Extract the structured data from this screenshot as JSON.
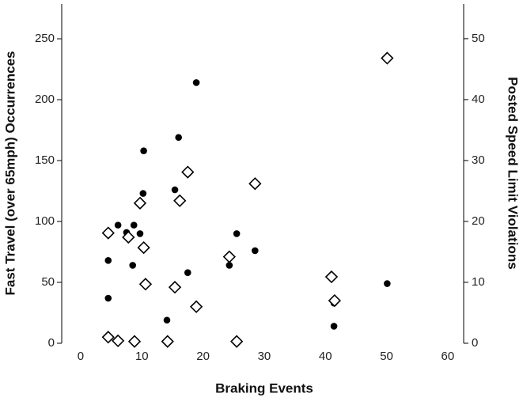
{
  "chart_data": {
    "type": "scatter",
    "x_label": "Braking Events",
    "y_label": "Fast Travel (over 65mph) Occurrences",
    "y2_label": "Posted Speed Limit Violations",
    "xlim": [
      -3.1,
      62.6
    ],
    "xticks": [
      0,
      10,
      20,
      30,
      40,
      50,
      60
    ],
    "ylim": [
      0,
      278.6
    ],
    "yticks": [
      0,
      50,
      100,
      150,
      200,
      250
    ],
    "y2lim": [
      0,
      55.7
    ],
    "y2ticks": [
      0,
      10,
      20,
      30,
      40,
      50
    ],
    "series": [
      {
        "marker": "circle",
        "color": "#000000",
        "x": [
          4.5,
          4.5,
          6.1,
          7.5,
          8.7,
          9.7,
          8.5,
          10.2,
          10.3,
          16.0,
          15.4,
          18.9,
          17.5,
          14.1,
          24.3,
          25.5,
          28.5,
          41.4,
          41.4,
          50.1
        ],
        "values": [
          68,
          37,
          97,
          91,
          97,
          90,
          64,
          123,
          158,
          169,
          126,
          214,
          58,
          19,
          64,
          90,
          76,
          33,
          14,
          49
        ]
      },
      {
        "marker": "diamond",
        "color": "#000000",
        "axis": "y2",
        "x": [
          4.5,
          4.5,
          6.1,
          7.8,
          8.8,
          9.7,
          10.3,
          10.6,
          14.2,
          15.4,
          16.2,
          17.5,
          18.9,
          24.3,
          25.5,
          28.5,
          41.0,
          41.5,
          50.1
        ],
        "values": [
          18.1,
          1.0,
          0.4,
          17.4,
          0.3,
          23.0,
          15.7,
          9.7,
          0.3,
          9.2,
          23.4,
          28.1,
          6.0,
          14.2,
          0.3,
          26.2,
          10.9,
          7.0,
          46.8
        ]
      }
    ]
  }
}
